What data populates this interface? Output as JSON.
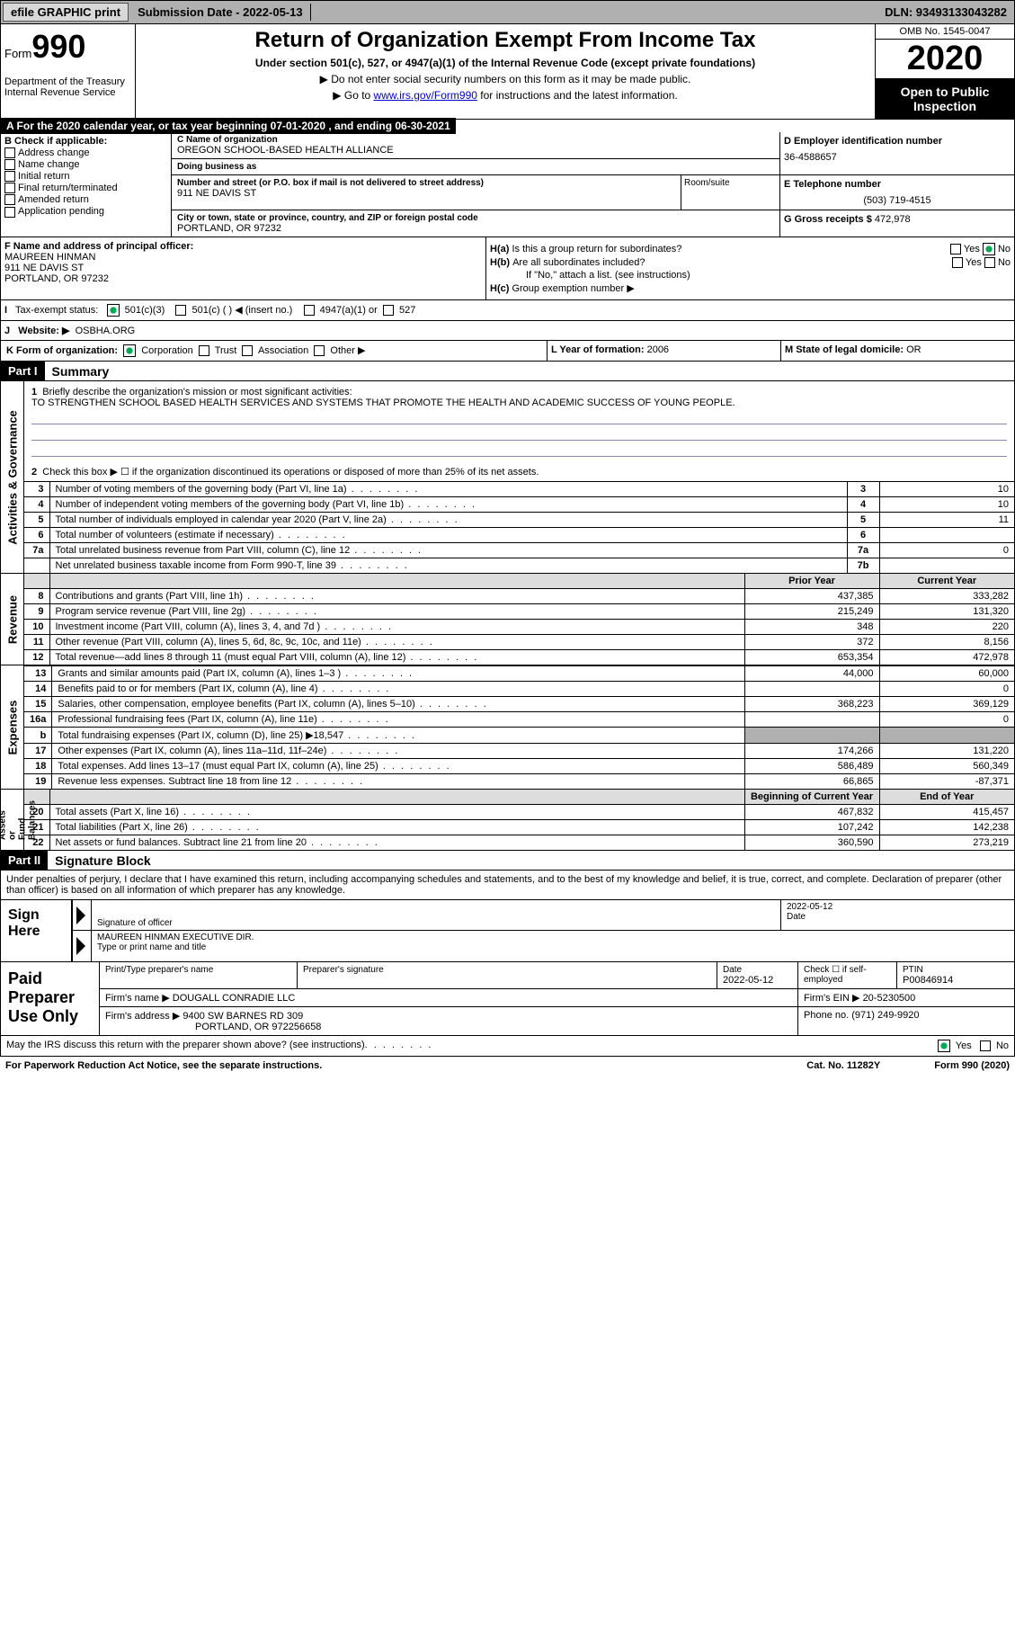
{
  "topbar": {
    "efile": "efile GRAPHIC print",
    "submission": "Submission Date - 2022-05-13",
    "dln": "DLN: 93493133043282"
  },
  "header": {
    "form": "Form",
    "num": "990",
    "title": "Return of Organization Exempt From Income Tax",
    "sub1": "Under section 501(c), 527, or 4947(a)(1) of the Internal Revenue Code (except private foundations)",
    "sub2": "▶ Do not enter social security numbers on this form as it may be made public.",
    "sub3_pre": "▶ Go to ",
    "sub3_link": "www.irs.gov/Form990",
    "sub3_post": " for instructions and the latest information.",
    "dept": "Department of the Treasury\nInternal Revenue Service",
    "omb": "OMB No. 1545-0047",
    "year": "2020",
    "open": "Open to Public Inspection"
  },
  "taxyear": "A For the 2020 calendar year, or tax year beginning 07-01-2020    , and ending 06-30-2021",
  "B": {
    "hd": "B Check if applicable:",
    "items": [
      "Address change",
      "Name change",
      "Initial return",
      "Final return/terminated",
      "Amended return",
      "Application pending"
    ]
  },
  "C": {
    "name_lbl": "C Name of organization",
    "name": "OREGON SCHOOL-BASED HEALTH ALLIANCE",
    "dba_lbl": "Doing business as",
    "dba": "",
    "addr_lbl": "Number and street (or P.O. box if mail is not delivered to street address)",
    "addr": "911 NE DAVIS ST",
    "room_lbl": "Room/suite",
    "city_lbl": "City or town, state or province, country, and ZIP or foreign postal code",
    "city": "PORTLAND, OR  97232"
  },
  "D": {
    "lbl": "D Employer identification number",
    "val": "36-4588657"
  },
  "E": {
    "lbl": "E Telephone number",
    "val": "(503) 719-4515"
  },
  "G": {
    "lbl": "G Gross receipts $",
    "val": "472,978"
  },
  "F": {
    "lbl": "F Name and address of principal officer:",
    "name": "MAUREEN HINMAN",
    "addr1": "911 NE DAVIS ST",
    "addr2": "PORTLAND, OR  97232"
  },
  "H": {
    "a": "Is this a group return for subordinates?",
    "b": "Are all subordinates included?",
    "bnote": "If \"No,\" attach a list. (see instructions)",
    "c": "Group exemption number ▶",
    "Ha": "H(a)",
    "Hb": "H(b)",
    "Hc": "H(c)",
    "yes": "Yes",
    "no": "No"
  },
  "I": {
    "lbl": "Tax-exempt status:",
    "opts": [
      "501(c)(3)",
      "501(c) (  ) ◀ (insert no.)",
      "4947(a)(1) or",
      "527"
    ],
    "letter": "I"
  },
  "J": {
    "lbl": "Website: ▶",
    "val": "OSBHA.ORG",
    "letter": "J"
  },
  "K": {
    "lbl": "K Form of organization:",
    "opts": [
      "Corporation",
      "Trust",
      "Association",
      "Other ▶"
    ]
  },
  "L": {
    "lbl": "L Year of formation:",
    "val": "2006"
  },
  "M": {
    "lbl": "M State of legal domicile:",
    "val": "OR"
  },
  "part1": {
    "hdr": "Part I",
    "title": "Summary",
    "side_gov": "Activities & Governance",
    "side_rev": "Revenue",
    "side_exp": "Expenses",
    "side_net": "Net Assets or\nFund Balances",
    "q1": "Briefly describe the organization's mission or most significant activities:",
    "mission": "TO STRENGTHEN SCHOOL BASED HEALTH SERVICES AND SYSTEMS THAT PROMOTE THE HEALTH AND ACADEMIC SUCCESS OF YOUNG PEOPLE.",
    "q2": "Check this box ▶ ☐  if the organization discontinued its operations or disposed of more than 25% of its net assets.",
    "rows_gov": [
      {
        "n": "3",
        "t": "Number of voting members of the governing body (Part VI, line 1a)",
        "r": "3",
        "v": "10"
      },
      {
        "n": "4",
        "t": "Number of independent voting members of the governing body (Part VI, line 1b)",
        "r": "4",
        "v": "10"
      },
      {
        "n": "5",
        "t": "Total number of individuals employed in calendar year 2020 (Part V, line 2a)",
        "r": "5",
        "v": "11"
      },
      {
        "n": "6",
        "t": "Total number of volunteers (estimate if necessary)",
        "r": "6",
        "v": ""
      },
      {
        "n": "7a",
        "t": "Total unrelated business revenue from Part VIII, column (C), line 12",
        "r": "7a",
        "v": "0"
      },
      {
        "n": "",
        "t": "Net unrelated business taxable income from Form 990-T, line 39",
        "r": "7b",
        "v": ""
      }
    ],
    "col_prior": "Prior Year",
    "col_curr": "Current Year",
    "col_beg": "Beginning of Current Year",
    "col_end": "End of Year",
    "rows_rev": [
      {
        "n": "8",
        "t": "Contributions and grants (Part VIII, line 1h)",
        "p": "437,385",
        "c": "333,282"
      },
      {
        "n": "9",
        "t": "Program service revenue (Part VIII, line 2g)",
        "p": "215,249",
        "c": "131,320"
      },
      {
        "n": "10",
        "t": "Investment income (Part VIII, column (A), lines 3, 4, and 7d )",
        "p": "348",
        "c": "220"
      },
      {
        "n": "11",
        "t": "Other revenue (Part VIII, column (A), lines 5, 6d, 8c, 9c, 10c, and 11e)",
        "p": "372",
        "c": "8,156"
      },
      {
        "n": "12",
        "t": "Total revenue—add lines 8 through 11 (must equal Part VIII, column (A), line 12)",
        "p": "653,354",
        "c": "472,978"
      }
    ],
    "rows_exp": [
      {
        "n": "13",
        "t": "Grants and similar amounts paid (Part IX, column (A), lines 1–3 )",
        "p": "44,000",
        "c": "60,000"
      },
      {
        "n": "14",
        "t": "Benefits paid to or for members (Part IX, column (A), line 4)",
        "p": "",
        "c": "0"
      },
      {
        "n": "15",
        "t": "Salaries, other compensation, employee benefits (Part IX, column (A), lines 5–10)",
        "p": "368,223",
        "c": "369,129"
      },
      {
        "n": "16a",
        "t": "Professional fundraising fees (Part IX, column (A), line 11e)",
        "p": "",
        "c": "0"
      },
      {
        "n": "b",
        "t": "Total fundraising expenses (Part IX, column (D), line 25) ▶18,547",
        "p": "grey",
        "c": "grey"
      },
      {
        "n": "17",
        "t": "Other expenses (Part IX, column (A), lines 11a–11d, 11f–24e)",
        "p": "174,266",
        "c": "131,220"
      },
      {
        "n": "18",
        "t": "Total expenses. Add lines 13–17 (must equal Part IX, column (A), line 25)",
        "p": "586,489",
        "c": "560,349"
      },
      {
        "n": "19",
        "t": "Revenue less expenses. Subtract line 18 from line 12",
        "p": "66,865",
        "c": "-87,371"
      }
    ],
    "rows_net": [
      {
        "n": "20",
        "t": "Total assets (Part X, line 16)",
        "p": "467,832",
        "c": "415,457"
      },
      {
        "n": "21",
        "t": "Total liabilities (Part X, line 26)",
        "p": "107,242",
        "c": "142,238"
      },
      {
        "n": "22",
        "t": "Net assets or fund balances. Subtract line 21 from line 20",
        "p": "360,590",
        "c": "273,219"
      }
    ]
  },
  "part2": {
    "hdr": "Part II",
    "title": "Signature Block",
    "decl": "Under penalties of perjury, I declare that I have examined this return, including accompanying schedules and statements, and to the best of my knowledge and belief, it is true, correct, and complete. Declaration of preparer (other than officer) is based on all information of which preparer has any knowledge.",
    "sign": "Sign Here",
    "sig_officer": "Signature of officer",
    "date_lbl": "Date",
    "sig_date": "2022-05-12",
    "name_title": "MAUREEN HINMAN  EXECUTIVE DIR.",
    "type_lbl": "Type or print name and title",
    "paid": "Paid Preparer Use Only",
    "p_name_lbl": "Print/Type preparer's name",
    "p_sig_lbl": "Preparer's signature",
    "p_date_lbl": "Date",
    "p_date": "2022-05-12",
    "p_check": "Check ☐ if self-employed",
    "ptin_lbl": "PTIN",
    "ptin": "P00846914",
    "firm_name_lbl": "Firm's name    ▶",
    "firm_name": "DOUGALL CONRADIE LLC",
    "firm_ein_lbl": "Firm's EIN ▶",
    "firm_ein": "20-5230500",
    "firm_addr_lbl": "Firm's address ▶",
    "firm_addr1": "9400 SW BARNES RD 309",
    "firm_addr2": "PORTLAND, OR  972256658",
    "phone_lbl": "Phone no.",
    "phone": "(971) 249-9920",
    "discuss": "May the IRS discuss this return with the preparer shown above? (see instructions)",
    "yes": "Yes",
    "no": "No"
  },
  "footer": {
    "pra": "For Paperwork Reduction Act Notice, see the separate instructions.",
    "cat": "Cat. No. 11282Y",
    "form": "Form 990 (2020)"
  },
  "colors": {
    "bg": "#ffffff",
    "black": "#000000",
    "grey": "#b0b0b0",
    "link": "#0000cc"
  }
}
